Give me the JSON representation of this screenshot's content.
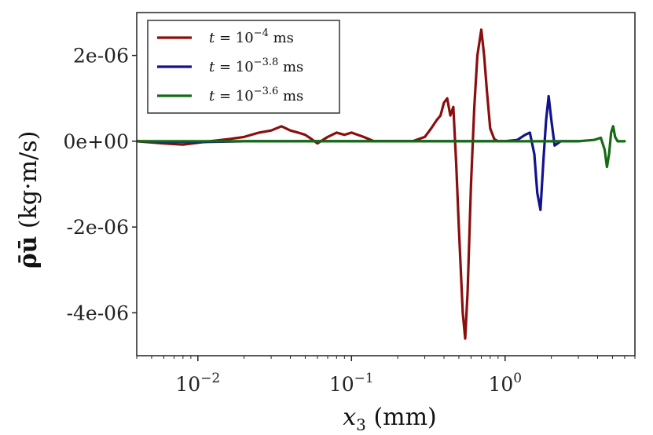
{
  "chart_data": {
    "type": "line",
    "title": "",
    "xlabel": "x3 (mm)",
    "xlabel_var": "x",
    "xlabel_sub": "3",
    "xlabel_unit": " (mm)",
    "ylabel": "ρ̄ū (kg·m/s)",
    "ylabel_sym": "ρ̄ū",
    "ylabel_unit": " (kg·m/s)",
    "xscale": "log",
    "xlim": [
      0.004,
      7
    ],
    "ylim": [
      -5e-06,
      3e-06
    ],
    "x_ticks": [
      {
        "value": 0.01,
        "base": "10",
        "exp": "−2"
      },
      {
        "value": 0.1,
        "base": "10",
        "exp": "−1"
      },
      {
        "value": 1,
        "base": "10",
        "exp": "0"
      }
    ],
    "y_ticks": [
      {
        "value": 2e-06,
        "label": "2e-06"
      },
      {
        "value": 0,
        "label": "0e+00"
      },
      {
        "value": -2e-06,
        "label": "-2e-06"
      },
      {
        "value": -4e-06,
        "label": "-4e-06"
      }
    ],
    "legend_position": "top-left",
    "series": [
      {
        "name": "t = 10^-4 ms",
        "label_prefix": "t = 10",
        "label_exp": "−4",
        "label_suffix": " ms",
        "color": "#8b0e0e",
        "x": [
          0.004,
          0.006,
          0.008,
          0.012,
          0.016,
          0.02,
          0.025,
          0.03,
          0.035,
          0.04,
          0.045,
          0.05,
          0.055,
          0.06,
          0.07,
          0.08,
          0.09,
          0.1,
          0.11,
          0.12,
          0.14,
          0.16,
          0.2,
          0.25,
          0.3,
          0.33,
          0.36,
          0.38,
          0.4,
          0.42,
          0.44,
          0.46,
          0.48,
          0.5,
          0.53,
          0.55,
          0.57,
          0.6,
          0.63,
          0.66,
          0.7,
          0.73,
          0.76,
          0.8,
          0.85,
          0.9,
          1.0
        ],
        "y": [
          0,
          -5e-08,
          -8e-08,
          0,
          5e-08,
          1e-07,
          2e-07,
          2.5e-07,
          3.5e-07,
          2.5e-07,
          2e-07,
          1.5e-07,
          5e-08,
          -5e-08,
          1e-07,
          2e-07,
          1.5e-07,
          2e-07,
          1.5e-07,
          1e-07,
          0,
          0,
          0,
          0,
          1e-07,
          3e-07,
          5e-07,
          6e-07,
          9e-07,
          1e-06,
          6e-07,
          8e-07,
          -5e-07,
          -2e-06,
          -4e-06,
          -4.6e-06,
          -3.5e-06,
          -1e-06,
          8e-07,
          2e-06,
          2.6e-06,
          2e-06,
          1.2e-06,
          3e-07,
          5e-08,
          0,
          0
        ]
      },
      {
        "name": "t = 10^-3.8 ms",
        "label_prefix": "t = 10",
        "label_exp": "−3.8",
        "label_suffix": " ms",
        "color": "#12128c",
        "x": [
          0.004,
          0.01,
          0.02,
          0.05,
          0.1,
          0.2,
          0.5,
          0.8,
          1.0,
          1.2,
          1.35,
          1.45,
          1.55,
          1.62,
          1.7,
          1.78,
          1.85,
          1.92,
          2.0,
          2.1,
          2.3,
          2.6,
          3.0
        ],
        "y": [
          0,
          -2e-08,
          0,
          0,
          0,
          0,
          0,
          0,
          0,
          3e-08,
          1.5e-07,
          2e-07,
          -3e-07,
          -1.2e-06,
          -1.6e-06,
          -4e-07,
          5e-07,
          1.05e-06,
          5e-07,
          -1e-07,
          0,
          0,
          0
        ]
      },
      {
        "name": "t = 10^-3.6 ms",
        "label_prefix": "t = 10",
        "label_exp": "−3.6",
        "label_suffix": " ms",
        "color": "#146b14",
        "x": [
          0.004,
          0.01,
          0.02,
          0.05,
          0.1,
          0.2,
          0.5,
          1.0,
          2.0,
          3.0,
          3.8,
          4.2,
          4.45,
          4.6,
          4.75,
          4.9,
          5.05,
          5.2,
          5.4,
          5.8,
          6.0
        ],
        "y": [
          0,
          0,
          0,
          0,
          0,
          0,
          0,
          0,
          0,
          0,
          3e-08,
          8e-08,
          -2e-07,
          -6e-07,
          -3e-07,
          2e-07,
          3.5e-07,
          1e-07,
          0,
          0,
          0
        ]
      }
    ]
  }
}
